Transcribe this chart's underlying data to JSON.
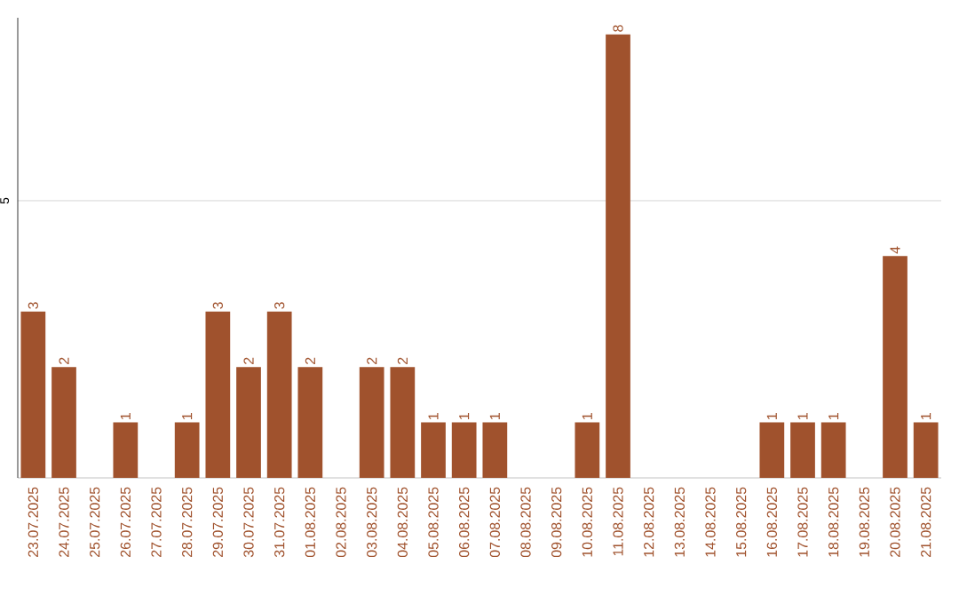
{
  "chart_data": {
    "type": "bar",
    "categories": [
      "23.07.2025",
      "24.07.2025",
      "25.07.2025",
      "26.07.2025",
      "27.07.2025",
      "28.07.2025",
      "29.07.2025",
      "30.07.2025",
      "31.07.2025",
      "01.08.2025",
      "02.08.2025",
      "03.08.2025",
      "04.08.2025",
      "05.08.2025",
      "06.08.2025",
      "07.08.2025",
      "08.08.2025",
      "09.08.2025",
      "10.08.2025",
      "11.08.2025",
      "12.08.2025",
      "13.08.2025",
      "14.08.2025",
      "15.08.2025",
      "16.08.2025",
      "17.08.2025",
      "18.08.2025",
      "19.08.2025",
      "20.08.2025",
      "21.08.2025"
    ],
    "values": [
      3,
      2,
      0,
      1,
      0,
      1,
      3,
      2,
      3,
      2,
      0,
      2,
      2,
      1,
      1,
      1,
      0,
      0,
      1,
      8,
      0,
      0,
      0,
      0,
      1,
      1,
      1,
      0,
      4,
      1
    ],
    "value_labels": [
      "3",
      "2",
      null,
      "1",
      null,
      "1",
      "3",
      "2",
      "3",
      "2",
      null,
      "2",
      "2",
      "1",
      "1",
      "1",
      null,
      null,
      "1",
      "8",
      null,
      null,
      null,
      null,
      "1",
      "1",
      "1",
      null,
      "4",
      "1"
    ],
    "color": "#a0522d",
    "ylim": [
      0,
      8.3
    ],
    "yticks": [
      5
    ],
    "grid": "y"
  }
}
